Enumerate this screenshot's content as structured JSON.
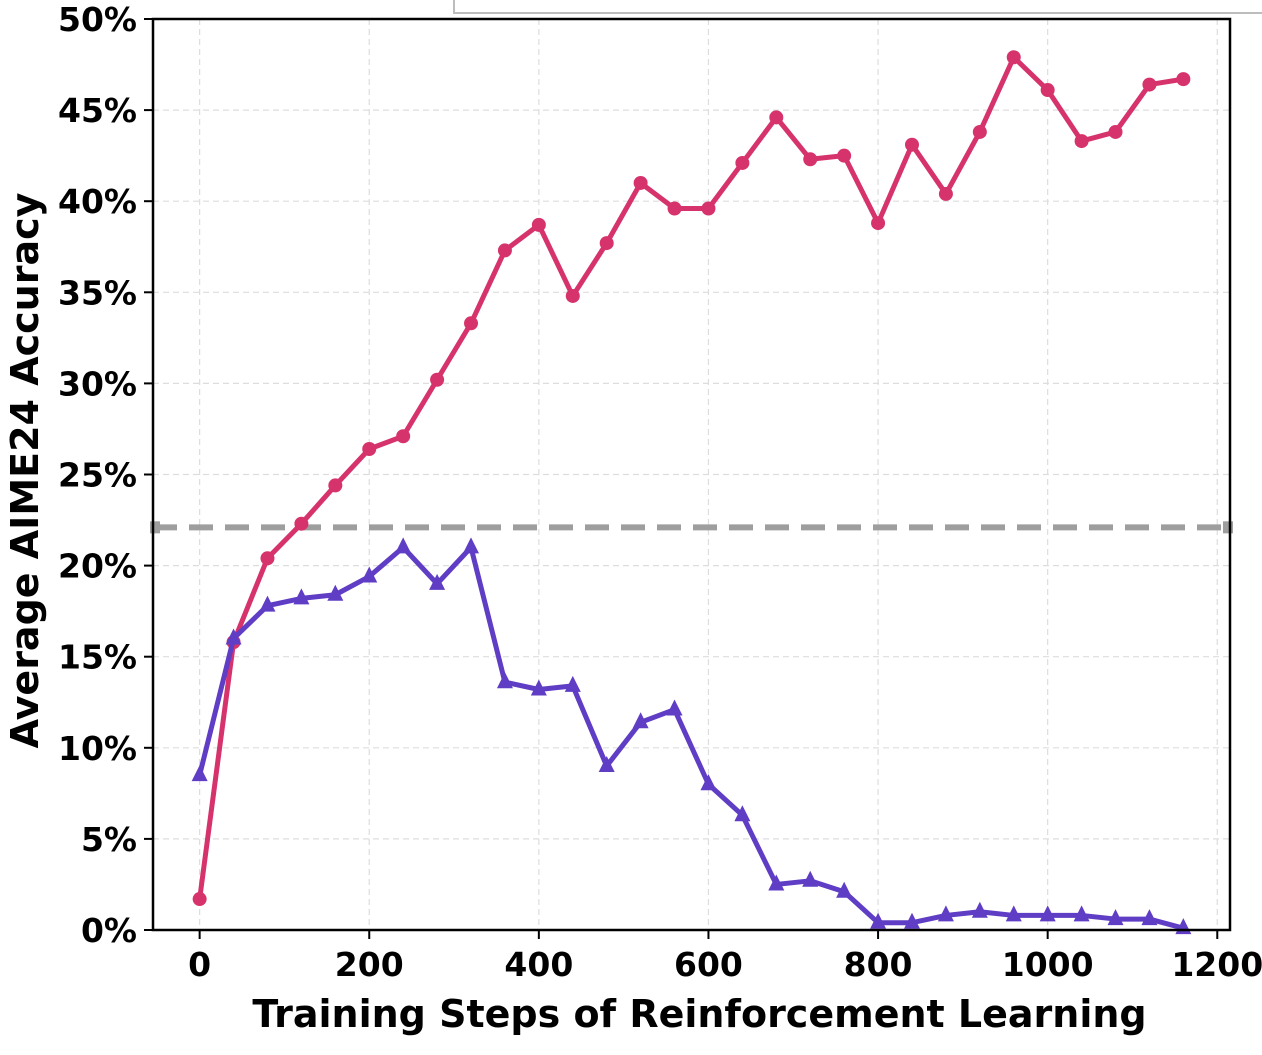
{
  "chart_data": {
    "type": "line",
    "xlabel": "Training Steps of Reinforcement Learning",
    "ylabel": "Average AIME24 Accuracy",
    "xlim": [
      -55,
      1215
    ],
    "ylim": [
      0,
      50
    ],
    "xticks": [
      0,
      200,
      400,
      600,
      800,
      1000,
      1200
    ],
    "xtick_labels": [
      "0",
      "200",
      "400",
      "600",
      "800",
      "1000",
      "1200"
    ],
    "yticks": [
      0,
      5,
      10,
      15,
      20,
      25,
      30,
      35,
      40,
      45,
      50
    ],
    "ytick_labels": [
      "0%",
      "5%",
      "10%",
      "15%",
      "20%",
      "25%",
      "30%",
      "35%",
      "40%",
      "45%",
      "50%"
    ],
    "grid": true,
    "legend": "top (partially cropped, entries not visible)",
    "series": [
      {
        "color": "#d6336c",
        "marker": "circle",
        "x": [
          0,
          40,
          80,
          120,
          160,
          200,
          240,
          280,
          320,
          360,
          400,
          440,
          480,
          520,
          560,
          600,
          640,
          680,
          720,
          760,
          800,
          840,
          880,
          920,
          960,
          1000,
          1040,
          1080,
          1120,
          1160
        ],
        "y": [
          1.7,
          15.8,
          20.4,
          22.3,
          24.4,
          26.4,
          27.1,
          30.2,
          33.3,
          37.3,
          38.7,
          34.8,
          37.7,
          41.0,
          39.6,
          39.6,
          42.1,
          44.6,
          42.3,
          42.5,
          38.8,
          43.1,
          40.4,
          43.8,
          47.9,
          46.1,
          43.3,
          43.8,
          46.4,
          46.7
        ]
      },
      {
        "color": "#5f3dc4",
        "marker": "triangle",
        "x": [
          0,
          40,
          80,
          120,
          160,
          200,
          240,
          280,
          320,
          360,
          400,
          440,
          480,
          520,
          560,
          600,
          640,
          680,
          720,
          760,
          800,
          840,
          880,
          920,
          960,
          1000,
          1040,
          1080,
          1120,
          1160
        ],
        "y": [
          8.5,
          16.0,
          17.8,
          18.2,
          18.4,
          19.4,
          21.0,
          19.0,
          21.0,
          13.6,
          13.2,
          13.4,
          9.0,
          11.4,
          12.1,
          8.0,
          6.3,
          2.5,
          2.7,
          2.1,
          0.4,
          0.4,
          0.8,
          1.0,
          0.8,
          0.8,
          0.8,
          0.6,
          0.6,
          0.1
        ]
      }
    ],
    "reference_line": {
      "y": 22.1,
      "color": "#9e9e9e",
      "style": "dashed"
    }
  }
}
